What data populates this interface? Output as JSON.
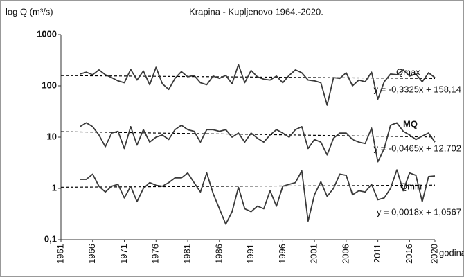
{
  "chart_data": {
    "type": "line",
    "title": "Krapina - Kupljenovo 1964.-2020.",
    "y_label": "log Q (m³/s)",
    "x_label": "godina / year",
    "log_y": true,
    "xlim": [
      1961,
      2020
    ],
    "xticks": [
      1961,
      1966,
      1971,
      1976,
      1981,
      1986,
      1991,
      1996,
      2001,
      2006,
      2011,
      2016,
      2020
    ],
    "ylim": [
      0.1,
      1000
    ],
    "yticks": [
      {
        "value": 0.1,
        "label": "0,1"
      },
      1,
      10,
      100,
      1000
    ],
    "x": [
      1964,
      1965,
      1966,
      1967,
      1968,
      1969,
      1970,
      1971,
      1972,
      1973,
      1974,
      1975,
      1976,
      1977,
      1978,
      1979,
      1980,
      1981,
      1982,
      1983,
      1984,
      1985,
      1986,
      1987,
      1988,
      1989,
      1990,
      1991,
      1992,
      1993,
      1994,
      1995,
      1996,
      1997,
      1998,
      1999,
      2000,
      2001,
      2002,
      2003,
      2004,
      2005,
      2006,
      2007,
      2008,
      2009,
      2010,
      2011,
      2012,
      2013,
      2014,
      2015,
      2016,
      2017,
      2018,
      2019,
      2020
    ],
    "series": [
      {
        "name": "Qmax",
        "color": "#3a3a3a",
        "bold": false,
        "trend_label": "y = -0,3325x + 158,14",
        "trend_slope": -0.3325,
        "trend_intercept": 158.14,
        "values": [
          170,
          185,
          165,
          205,
          165,
          145,
          125,
          115,
          210,
          130,
          195,
          105,
          230,
          110,
          85,
          140,
          190,
          150,
          160,
          115,
          105,
          155,
          140,
          160,
          110,
          260,
          115,
          200,
          150,
          135,
          130,
          155,
          115,
          160,
          205,
          180,
          130,
          125,
          115,
          42,
          145,
          140,
          180,
          100,
          130,
          120,
          185,
          55,
          120,
          170,
          165,
          205,
          155,
          170,
          120,
          180,
          145
        ]
      },
      {
        "name": "MQ",
        "color": "#3a3a3a",
        "bold": true,
        "trend_label": "y = -0,0465x + 12,702",
        "trend_slope": -0.0465,
        "trend_intercept": 12.702,
        "values": [
          16,
          19,
          16,
          11,
          6.5,
          12,
          13,
          6,
          16,
          7,
          14,
          8,
          10,
          11,
          9,
          14,
          17,
          14,
          13,
          8,
          14,
          14,
          13,
          14,
          10,
          12,
          8,
          12,
          9.5,
          8,
          11,
          14,
          12,
          10,
          14,
          16,
          6,
          9,
          8,
          4.5,
          9.5,
          12,
          12,
          9,
          8,
          7.5,
          15,
          3.3,
          6,
          17,
          19,
          13,
          11,
          9,
          10.5,
          12,
          8
        ]
      },
      {
        "name": "Qmin",
        "color": "#3a3a3a",
        "bold": false,
        "trend_label": "y = 0,0018x + 1,0567",
        "trend_slope": 0.0018,
        "trend_intercept": 1.0567,
        "values": [
          1.5,
          1.5,
          1.9,
          1.1,
          0.85,
          1.1,
          1.2,
          0.65,
          1.1,
          0.55,
          1.0,
          1.3,
          1.15,
          1.1,
          1.3,
          1.6,
          1.6,
          2.0,
          1.3,
          0.85,
          2.0,
          0.8,
          0.4,
          0.2,
          0.35,
          1.05,
          0.4,
          0.35,
          0.45,
          0.4,
          0.9,
          0.45,
          1.1,
          1.2,
          1.3,
          2.2,
          0.23,
          0.75,
          1.35,
          0.7,
          1.0,
          1.9,
          1.8,
          0.75,
          0.9,
          0.85,
          1.2,
          0.6,
          0.65,
          1.0,
          2.3,
          0.9,
          2.0,
          1.8,
          0.55,
          1.7,
          1.75
        ]
      }
    ]
  }
}
